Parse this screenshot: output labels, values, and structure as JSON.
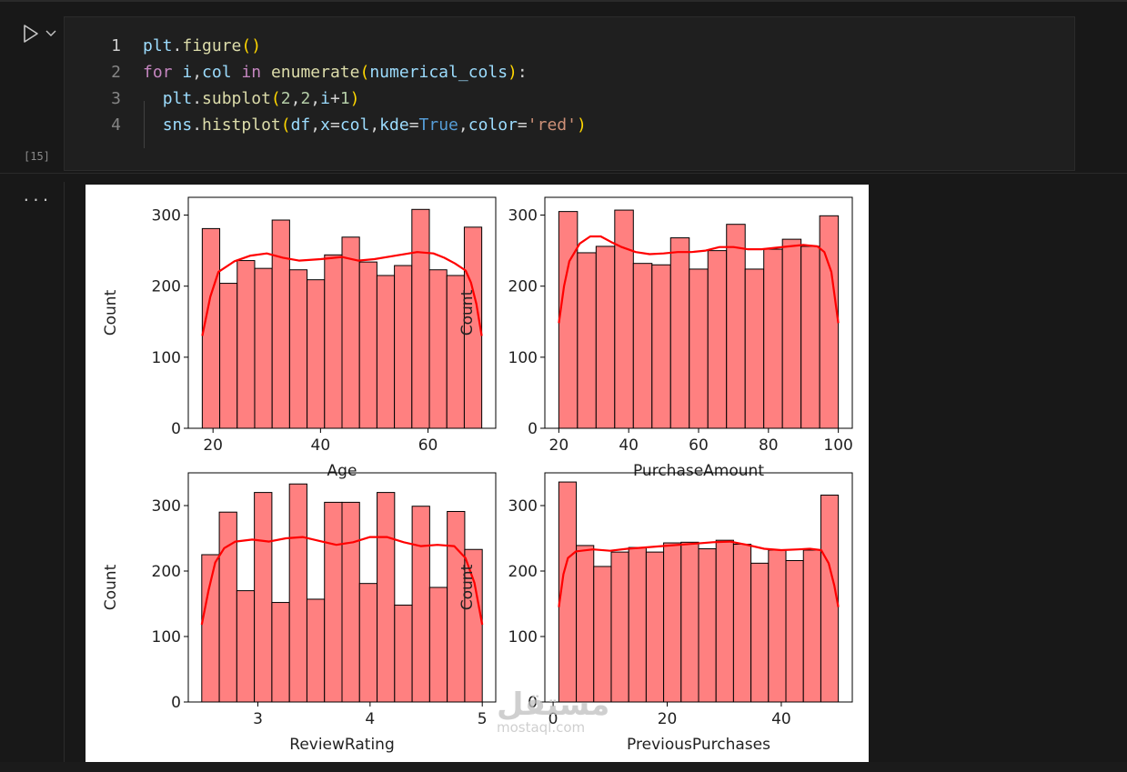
{
  "cell": {
    "execution_count": "[15]",
    "output_menu": "...",
    "code_lines": [
      {
        "number": "1",
        "tokens": [
          {
            "t": "plt",
            "c": "id"
          },
          {
            "t": ".",
            "c": "op"
          },
          {
            "t": "figure",
            "c": "fn"
          },
          {
            "t": "()",
            "c": "p1"
          }
        ]
      },
      {
        "number": "2",
        "tokens": [
          {
            "t": "for",
            "c": "kw"
          },
          {
            "t": " ",
            "c": "op"
          },
          {
            "t": "i",
            "c": "id"
          },
          {
            "t": ",",
            "c": "op"
          },
          {
            "t": "col",
            "c": "id"
          },
          {
            "t": " ",
            "c": "op"
          },
          {
            "t": "in",
            "c": "kw"
          },
          {
            "t": " ",
            "c": "op"
          },
          {
            "t": "enumerate",
            "c": "fn"
          },
          {
            "t": "(",
            "c": "p1"
          },
          {
            "t": "numerical_cols",
            "c": "id"
          },
          {
            "t": ")",
            "c": "p1"
          },
          {
            "t": ":",
            "c": "op"
          }
        ]
      },
      {
        "number": "3",
        "tokens": [
          {
            "t": "  ",
            "c": "op"
          },
          {
            "t": "plt",
            "c": "id"
          },
          {
            "t": ".",
            "c": "op"
          },
          {
            "t": "subplot",
            "c": "fn"
          },
          {
            "t": "(",
            "c": "p1"
          },
          {
            "t": "2",
            "c": "num"
          },
          {
            "t": ",",
            "c": "op"
          },
          {
            "t": "2",
            "c": "num"
          },
          {
            "t": ",",
            "c": "op"
          },
          {
            "t": "i",
            "c": "id"
          },
          {
            "t": "+",
            "c": "op"
          },
          {
            "t": "1",
            "c": "num"
          },
          {
            "t": ")",
            "c": "p1"
          }
        ]
      },
      {
        "number": "4",
        "tokens": [
          {
            "t": "  ",
            "c": "op"
          },
          {
            "t": "sns",
            "c": "id"
          },
          {
            "t": ".",
            "c": "op"
          },
          {
            "t": "histplot",
            "c": "fn"
          },
          {
            "t": "(",
            "c": "p1"
          },
          {
            "t": "df",
            "c": "id"
          },
          {
            "t": ",",
            "c": "op"
          },
          {
            "t": "x",
            "c": "id"
          },
          {
            "t": "=",
            "c": "op"
          },
          {
            "t": "col",
            "c": "id"
          },
          {
            "t": ",",
            "c": "op"
          },
          {
            "t": "kde",
            "c": "id"
          },
          {
            "t": "=",
            "c": "op"
          },
          {
            "t": "True",
            "c": "kw2"
          },
          {
            "t": ",",
            "c": "op"
          },
          {
            "t": "color",
            "c": "id"
          },
          {
            "t": "=",
            "c": "op"
          },
          {
            "t": "'red'",
            "c": "str"
          },
          {
            "t": ")",
            "c": "p1"
          }
        ]
      }
    ]
  },
  "colors": {
    "bar_fill": "#ff8080",
    "bar_edge": "#000000",
    "kde_line": "#ff0000"
  },
  "watermark": {
    "arabic": "مستقل",
    "latin": "mostaql.com"
  },
  "chart_data": [
    {
      "type": "bar",
      "xlabel": "Age",
      "ylabel": "Count",
      "xlim": [
        15.4,
        72.6
      ],
      "ylim": [
        0,
        325
      ],
      "xticks": [
        20,
        40,
        60
      ],
      "yticks": [
        0,
        100,
        200,
        300
      ],
      "bin_range": [
        18,
        70
      ],
      "values": [
        281,
        204,
        236,
        225,
        293,
        223,
        209,
        244,
        269,
        234,
        215,
        229,
        308,
        223,
        215,
        283
      ],
      "kde": [
        [
          18,
          130
        ],
        [
          19.5,
          185
        ],
        [
          21,
          220
        ],
        [
          24,
          235
        ],
        [
          27,
          243
        ],
        [
          30,
          246
        ],
        [
          33,
          240
        ],
        [
          36,
          236
        ],
        [
          40,
          238
        ],
        [
          44,
          241
        ],
        [
          47,
          236
        ],
        [
          50,
          238
        ],
        [
          54,
          243
        ],
        [
          58,
          248
        ],
        [
          61,
          246
        ],
        [
          63,
          240
        ],
        [
          65,
          232
        ],
        [
          67,
          222
        ],
        [
          68,
          205
        ],
        [
          69,
          175
        ],
        [
          70,
          130
        ]
      ]
    },
    {
      "type": "bar",
      "xlabel": "PurchaseAmount",
      "ylabel": "Count",
      "xlim": [
        16,
        104
      ],
      "ylim": [
        0,
        325
      ],
      "xticks": [
        20,
        40,
        60,
        80,
        100
      ],
      "yticks": [
        0,
        100,
        200,
        300
      ],
      "bin_range": [
        20,
        100
      ],
      "values": [
        305,
        247,
        256,
        307,
        232,
        230,
        268,
        224,
        250,
        287,
        224,
        252,
        266,
        256,
        299
      ],
      "kde": [
        [
          20,
          148
        ],
        [
          21.5,
          200
        ],
        [
          23,
          235
        ],
        [
          26,
          260
        ],
        [
          29,
          270
        ],
        [
          32,
          270
        ],
        [
          35,
          262
        ],
        [
          38,
          255
        ],
        [
          42,
          248
        ],
        [
          46,
          245
        ],
        [
          50,
          246
        ],
        [
          54,
          248
        ],
        [
          58,
          248
        ],
        [
          62,
          250
        ],
        [
          66,
          255
        ],
        [
          70,
          255
        ],
        [
          74,
          252
        ],
        [
          78,
          252
        ],
        [
          82,
          254
        ],
        [
          86,
          256
        ],
        [
          90,
          258
        ],
        [
          94,
          256
        ],
        [
          96,
          248
        ],
        [
          98,
          220
        ],
        [
          100,
          148
        ]
      ]
    },
    {
      "type": "bar",
      "xlabel": "ReviewRating",
      "ylabel": "Count",
      "xlim": [
        2.38,
        5.12
      ],
      "ylim": [
        0,
        350
      ],
      "xticks": [
        3,
        4,
        5
      ],
      "yticks": [
        0,
        100,
        200,
        300
      ],
      "bin_range": [
        2.5,
        5.0
      ],
      "values": [
        225,
        290,
        170,
        320,
        152,
        333,
        157,
        305,
        305,
        181,
        320,
        148,
        299,
        175,
        291,
        233
      ],
      "kde": [
        [
          2.5,
          118
        ],
        [
          2.56,
          170
        ],
        [
          2.62,
          213
        ],
        [
          2.7,
          235
        ],
        [
          2.8,
          245
        ],
        [
          2.95,
          248
        ],
        [
          3.1,
          245
        ],
        [
          3.25,
          250
        ],
        [
          3.4,
          252
        ],
        [
          3.55,
          246
        ],
        [
          3.7,
          240
        ],
        [
          3.85,
          244
        ],
        [
          4.0,
          252
        ],
        [
          4.15,
          252
        ],
        [
          4.3,
          244
        ],
        [
          4.45,
          238
        ],
        [
          4.6,
          240
        ],
        [
          4.75,
          238
        ],
        [
          4.85,
          220
        ],
        [
          4.93,
          182
        ],
        [
          5.0,
          118
        ]
      ]
    },
    {
      "type": "bar",
      "xlabel": "PreviousPurchases",
      "ylabel": "Count",
      "xlim": [
        -1.45,
        52.45
      ],
      "ylim": [
        0,
        350
      ],
      "xticks": [
        0,
        20,
        40
      ],
      "yticks": [
        0,
        100,
        200,
        300
      ],
      "bin_range": [
        1,
        50
      ],
      "values": [
        336,
        239,
        207,
        229,
        236,
        229,
        243,
        244,
        234,
        247,
        241,
        212,
        232,
        216,
        232,
        316
      ],
      "kde": [
        [
          1,
          145
        ],
        [
          1.8,
          195
        ],
        [
          2.6,
          220
        ],
        [
          4,
          230
        ],
        [
          7,
          233
        ],
        [
          10,
          231
        ],
        [
          13,
          234
        ],
        [
          16,
          236
        ],
        [
          19,
          238
        ],
        [
          22,
          240
        ],
        [
          25,
          242
        ],
        [
          28,
          244
        ],
        [
          31,
          245
        ],
        [
          34,
          240
        ],
        [
          37,
          234
        ],
        [
          40,
          232
        ],
        [
          43,
          233
        ],
        [
          45,
          234
        ],
        [
          47,
          232
        ],
        [
          48.3,
          212
        ],
        [
          49.3,
          178
        ],
        [
          50,
          145
        ]
      ]
    }
  ]
}
